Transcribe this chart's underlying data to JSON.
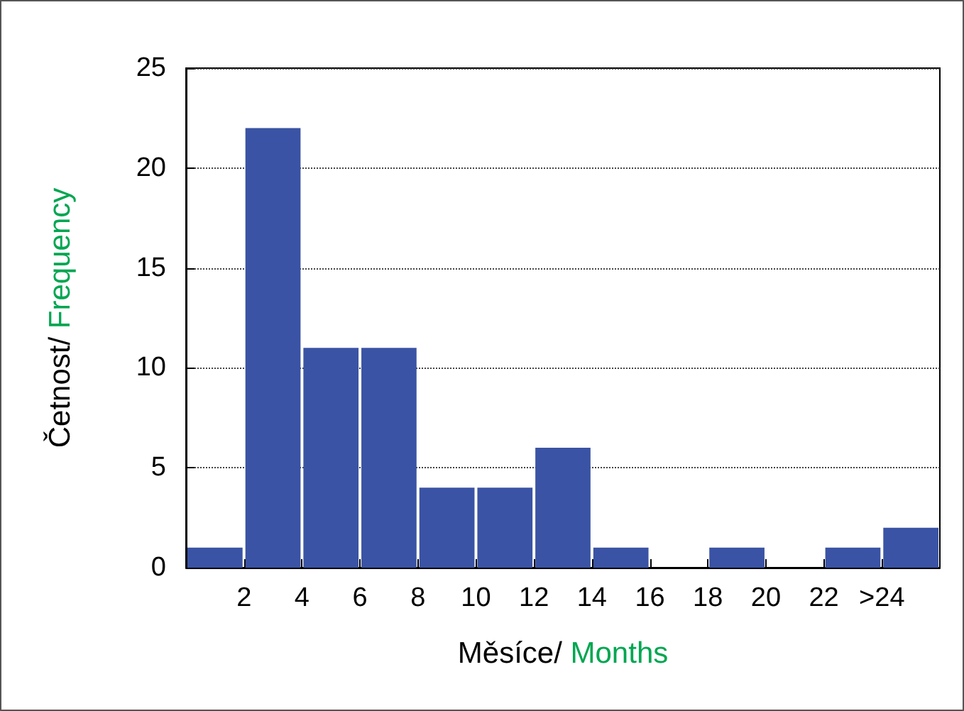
{
  "chart_data": {
    "type": "histogram",
    "xlabel": "Měsíce/ Months",
    "ylabel": "Četnost/ Frequency",
    "color": "#3a53a4",
    "bins": [
      0,
      2,
      4,
      6,
      8,
      10,
      12,
      14,
      16,
      18,
      20,
      22,
      24,
      26
    ],
    "values": [
      1,
      22,
      11,
      11,
      4,
      4,
      6,
      1,
      0,
      1,
      0,
      1,
      2
    ],
    "xlim": [
      0,
      26
    ],
    "xticks": [
      2,
      4,
      6,
      8,
      10,
      12,
      14,
      16,
      18,
      20,
      22,
      {
        "value": 24,
        "label": ">24"
      }
    ],
    "ylim": [
      0,
      25
    ],
    "yticks": [
      0,
      5,
      10,
      15,
      20,
      25
    ],
    "grid": "y"
  }
}
